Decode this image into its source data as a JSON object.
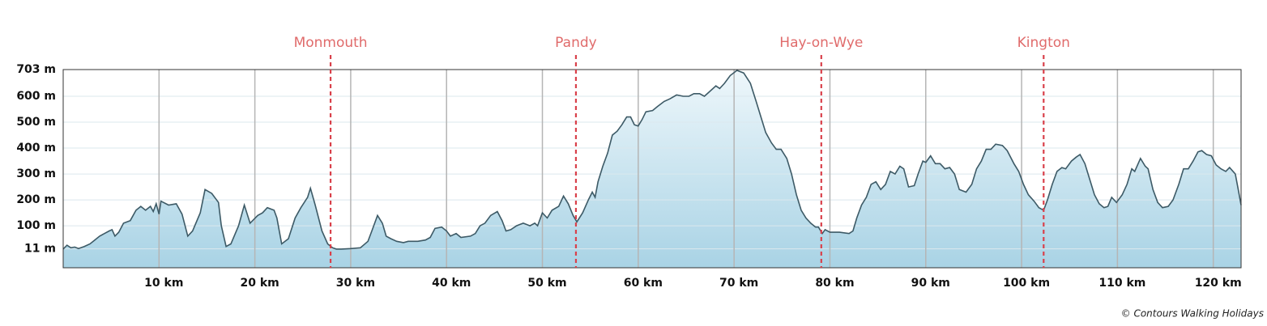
{
  "chart_data": {
    "type": "area",
    "x": [
      0,
      0.4,
      0.8,
      1.2,
      1.6,
      2.2,
      2.8,
      3.3,
      3.8,
      4.3,
      4.8,
      5.1,
      5.4,
      5.8,
      6.3,
      7,
      7.6,
      8.1,
      8.6,
      9.1,
      9.4,
      9.7,
      10,
      10.2,
      11,
      11.8,
      12.4,
      13,
      13.5,
      14.3,
      14.8,
      15.5,
      16.2,
      16.5,
      17,
      17.5,
      18.3,
      18.9,
      19.5,
      20.3,
      20.8,
      21.3,
      22,
      22.3,
      22.8,
      23.5,
      24.2,
      24.8,
      25.5,
      25.8,
      26.3,
      27,
      27.6,
      28.1,
      28.5,
      29,
      30,
      31,
      31.8,
      32.2,
      32.8,
      33.3,
      33.7,
      34.2,
      34.8,
      35.5,
      36,
      37,
      37.8,
      38.3,
      38.8,
      39.5,
      40,
      40.4,
      41,
      41.5,
      42.5,
      43,
      43.5,
      44,
      44.6,
      45.3,
      45.8,
      46.2,
      46.7,
      47.3,
      48,
      48.7,
      49.2,
      49.5,
      50,
      50.5,
      51,
      51.7,
      52.2,
      52.7,
      53.2,
      53.6,
      54.2,
      54.8,
      55.2,
      55.5,
      55.8,
      56.3,
      56.8,
      57.3,
      57.8,
      58.3,
      58.8,
      59.2,
      59.6,
      60,
      60.4,
      60.8,
      61.5,
      62,
      62.7,
      63.3,
      64,
      64.7,
      65.3,
      65.8,
      66.4,
      66.9,
      67.5,
      68.1,
      68.5,
      69,
      69.6,
      70.3,
      71,
      71.7,
      72.3,
      72.8,
      73.3,
      73.9,
      74.4,
      74.9,
      75.5,
      76,
      76.5,
      77,
      77.5,
      78,
      78.5,
      78.8,
      79.2,
      79.5,
      80,
      81,
      82,
      82.4,
      82.8,
      83.3,
      83.8,
      84.3,
      84.8,
      85.3,
      85.8,
      86.3,
      86.8,
      87.3,
      87.7,
      88.2,
      88.8,
      89.2,
      89.7,
      90,
      90.5,
      91,
      91.5,
      92,
      92.5,
      93,
      93.5,
      94.2,
      94.8,
      95.3,
      95.8,
      96.3,
      96.8,
      97.3,
      98,
      98.5,
      99.2,
      99.7,
      100.2,
      100.7,
      101.3,
      101.8,
      102.3,
      102.7,
      103.2,
      103.7,
      104.2,
      104.6,
      105.2,
      105.7,
      106.1,
      106.6,
      107.1,
      107.6,
      108.1,
      108.6,
      109,
      109.4,
      109.9,
      110.5,
      111,
      111.5,
      111.8,
      112.4,
      112.9,
      113.2,
      113.7,
      114.2,
      114.7,
      115.3,
      115.8,
      116.4,
      116.9,
      117.4,
      117.9,
      118.4,
      118.8,
      119.3,
      119.8,
      120.3,
      120.8,
      121.3,
      121.7,
      122.3,
      122.6,
      122.9
    ],
    "values": [
      10,
      25,
      15,
      18,
      12,
      20,
      30,
      45,
      60,
      70,
      80,
      85,
      60,
      75,
      110,
      120,
      160,
      175,
      160,
      175,
      155,
      185,
      145,
      195,
      180,
      185,
      145,
      60,
      80,
      150,
      240,
      225,
      190,
      100,
      20,
      30,
      100,
      180,
      110,
      140,
      150,
      170,
      160,
      130,
      30,
      50,
      130,
      170,
      210,
      245,
      180,
      80,
      30,
      15,
      10,
      10,
      12,
      15,
      40,
      80,
      140,
      110,
      60,
      50,
      40,
      35,
      40,
      40,
      45,
      55,
      90,
      95,
      80,
      60,
      70,
      55,
      60,
      70,
      100,
      110,
      140,
      155,
      120,
      80,
      85,
      100,
      110,
      100,
      110,
      100,
      150,
      130,
      160,
      175,
      215,
      185,
      140,
      115,
      150,
      200,
      230,
      210,
      270,
      330,
      380,
      450,
      465,
      490,
      520,
      520,
      490,
      485,
      510,
      540,
      545,
      560,
      580,
      590,
      605,
      600,
      600,
      610,
      610,
      600,
      620,
      640,
      630,
      650,
      680,
      700,
      690,
      650,
      580,
      520,
      460,
      420,
      395,
      395,
      360,
      300,
      220,
      160,
      130,
      110,
      95,
      95,
      70,
      85,
      75,
      75,
      70,
      80,
      130,
      180,
      210,
      260,
      270,
      240,
      260,
      310,
      300,
      330,
      320,
      250,
      255,
      300,
      350,
      345,
      370,
      340,
      340,
      320,
      325,
      300,
      240,
      230,
      260,
      320,
      350,
      395,
      395,
      415,
      410,
      390,
      340,
      310,
      260,
      220,
      195,
      170,
      160,
      200,
      260,
      310,
      325,
      320,
      350,
      365,
      375,
      340,
      280,
      220,
      185,
      170,
      175,
      210,
      190,
      220,
      260,
      320,
      310,
      360,
      330,
      320,
      240,
      190,
      170,
      175,
      200,
      260,
      320,
      320,
      350,
      385,
      390,
      375,
      370,
      335,
      320,
      310,
      325,
      300,
      240,
      180
    ],
    "line_color": "#3d5a66",
    "xlim": [
      0,
      122.9
    ],
    "ylim": [
      -62,
      703
    ],
    "xticks": [
      {
        "value": 10,
        "label": "10 km"
      },
      {
        "value": 20,
        "label": "20 km"
      },
      {
        "value": 30,
        "label": "30 km"
      },
      {
        "value": 40,
        "label": "40 km"
      },
      {
        "value": 50,
        "label": "50 km"
      },
      {
        "value": 60,
        "label": "60 km"
      },
      {
        "value": 70,
        "label": "70 km"
      },
      {
        "value": 80,
        "label": "80 km"
      },
      {
        "value": 90,
        "label": "90 km"
      },
      {
        "value": 100,
        "label": "100 km"
      },
      {
        "value": 110,
        "label": "110 km"
      },
      {
        "value": 120,
        "label": "120 km"
      }
    ],
    "yticks": [
      {
        "value": 11,
        "label": "11 m"
      },
      {
        "value": 100,
        "label": "100 m"
      },
      {
        "value": 200,
        "label": "200 m"
      },
      {
        "value": 300,
        "label": "300 m"
      },
      {
        "value": 400,
        "label": "400 m"
      },
      {
        "value": 500,
        "label": "500 m"
      },
      {
        "value": 600,
        "label": "600 m"
      },
      {
        "value": 703,
        "label": "703 m"
      }
    ],
    "grid": true,
    "markers": [
      {
        "label": "Monmouth",
        "x": 27.9
      },
      {
        "label": "Pandy",
        "x": 53.5
      },
      {
        "label": "Hay-on-Wye",
        "x": 79.1
      },
      {
        "label": "Kington",
        "x": 102.3
      }
    ],
    "marker_color": "#d9414b",
    "credit": "© Contours Walking Holidays"
  }
}
